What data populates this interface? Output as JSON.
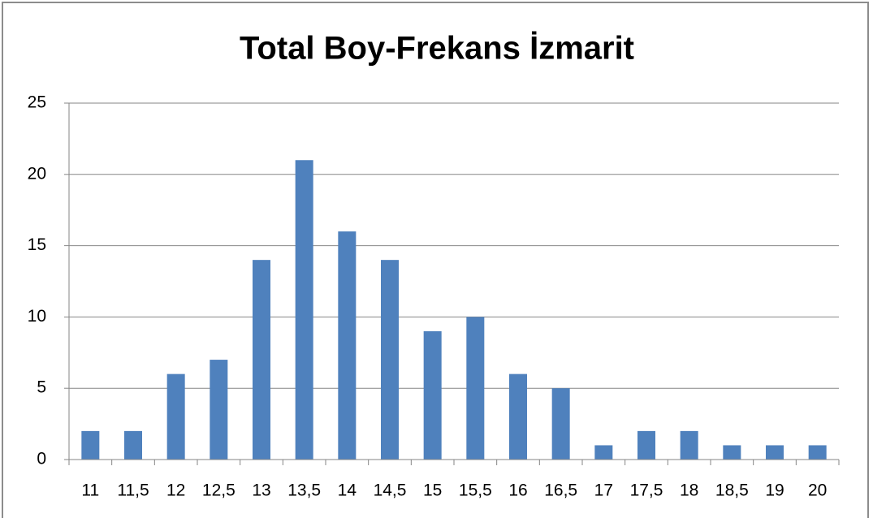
{
  "chart_data": {
    "type": "bar",
    "title": "Total Boy-Frekans İzmarit",
    "categories": [
      "11",
      "11,5",
      "12",
      "12,5",
      "13",
      "13,5",
      "14",
      "14,5",
      "15",
      "15,5",
      "16",
      "16,5",
      "17",
      "17,5",
      "18",
      "18,5",
      "19",
      "20"
    ],
    "values": [
      2,
      2,
      6,
      7,
      14,
      21,
      16,
      14,
      9,
      10,
      6,
      5,
      1,
      2,
      2,
      1,
      1,
      1
    ],
    "color": "#4f81bd",
    "ylim": [
      0,
      25
    ],
    "yticks": [
      0,
      5,
      10,
      15,
      20,
      25
    ],
    "grid": true
  }
}
